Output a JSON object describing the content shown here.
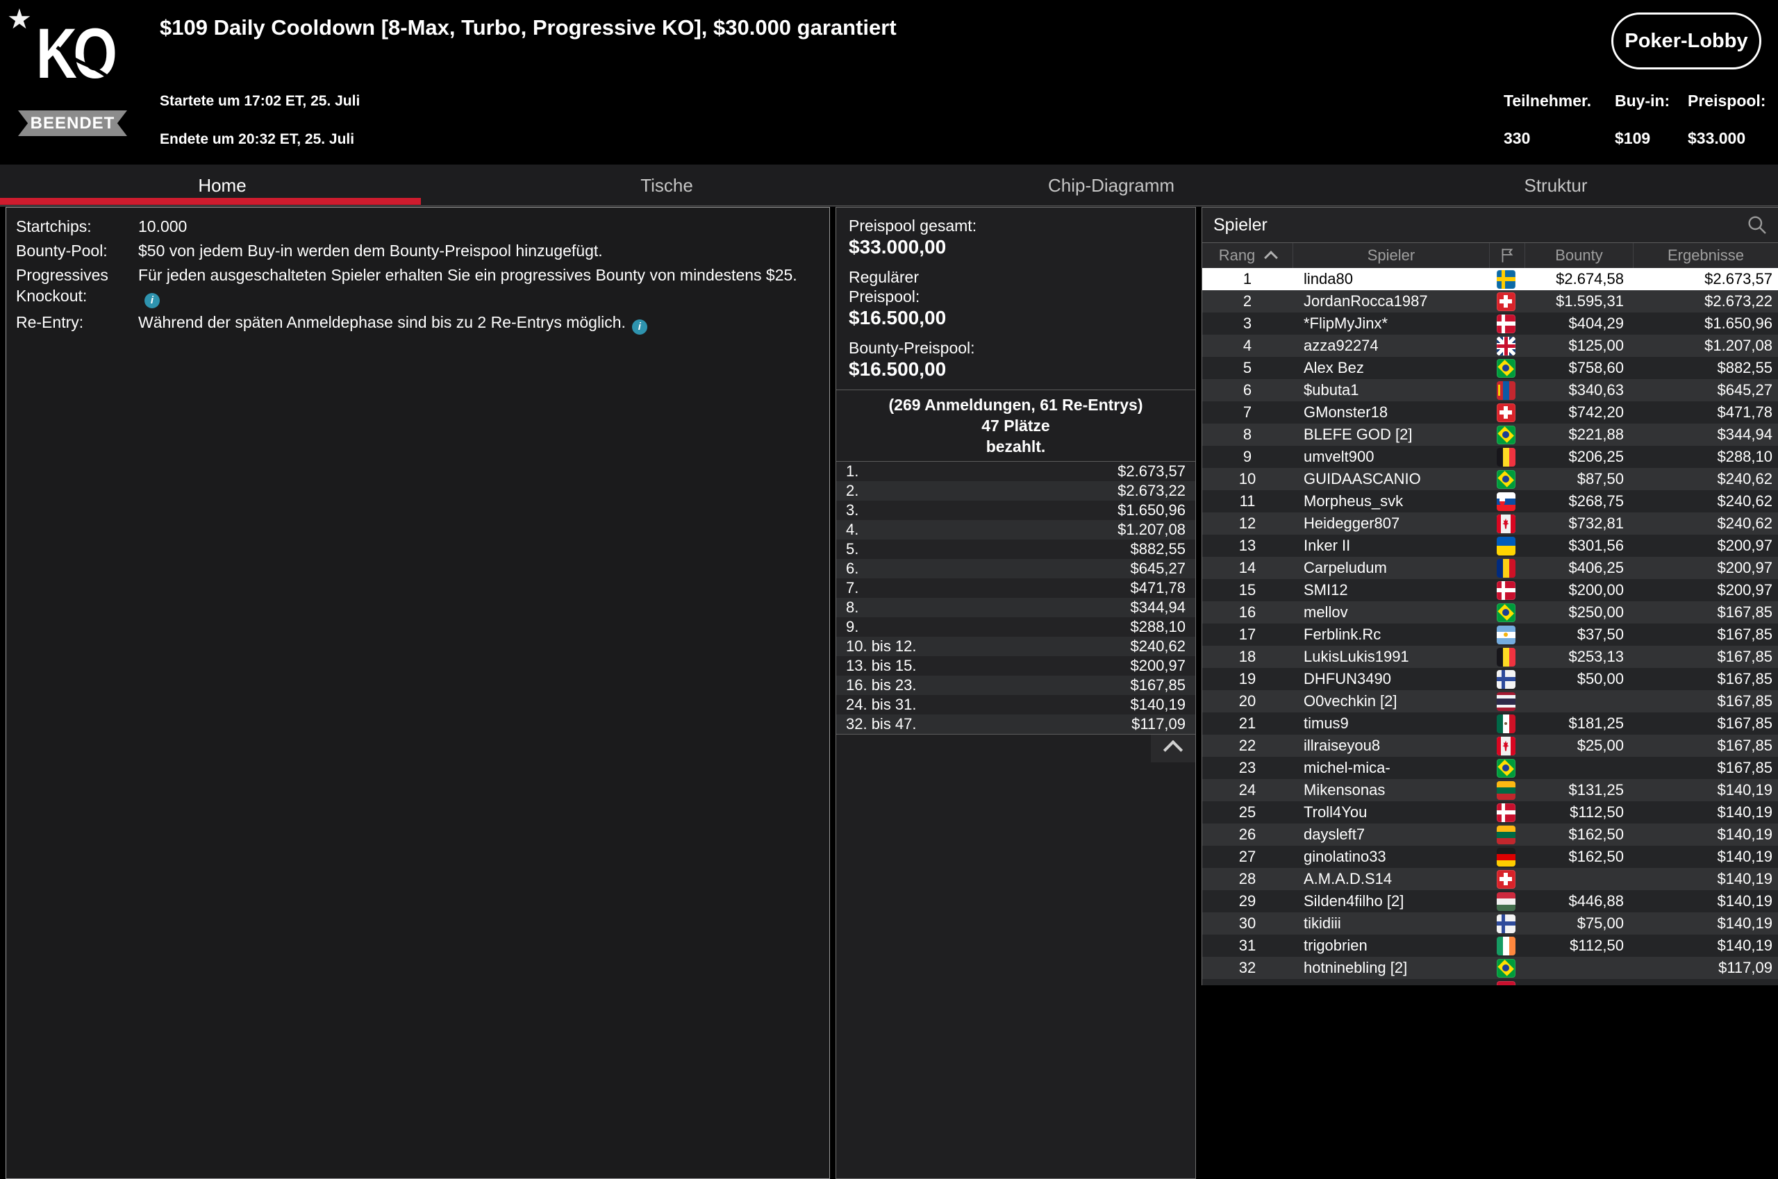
{
  "colors": {
    "accent_red": "#cf1c2e",
    "info_blue": "#2e93ae",
    "selected_row_bg": "#ffffff",
    "badge_gray": "#8c8c8c"
  },
  "header": {
    "logo": "KO",
    "star_icon": "star-icon",
    "status_badge": "BEENDET",
    "title": "$109 Daily Cooldown [8-Max, Turbo, Progressive KO], $30.000 garantiert",
    "started": "Startete um 17:02 ET, 25. Juli",
    "ended": "Endete um 20:32 ET, 25. Juli",
    "lobby_button": "Poker-Lobby",
    "stats": [
      {
        "label": "Teilnehmer.",
        "value": "330"
      },
      {
        "label": "Buy-in:",
        "value": "$109"
      },
      {
        "label": "Preispool:",
        "value": "$33.000"
      }
    ]
  },
  "tabs": [
    {
      "label": "Home",
      "active": true
    },
    {
      "label": "Tische",
      "active": false
    },
    {
      "label": "Chip-Diagramm",
      "active": false
    },
    {
      "label": "Struktur",
      "active": false
    }
  ],
  "details": [
    {
      "label": "Startchips:",
      "value": "10.000",
      "info": false
    },
    {
      "label": "Bounty-Pool:",
      "value": "$50 von jedem Buy-in werden dem Bounty-Preispool hinzugefügt.",
      "info": false
    },
    {
      "label": "Progressives Knockout:",
      "value": "Für jeden ausgeschalteten Spieler erhalten Sie ein progressives Bounty von mindestens $25.",
      "info": true
    },
    {
      "label": "Re-Entry:",
      "value": "Während der späten Anmeldephase sind bis zu 2 Re-Entrys möglich.",
      "info": true
    }
  ],
  "prizepool": {
    "total_label": "Preispool gesamt:",
    "total_value": "$33.000,00",
    "regular_label": "Regulärer\nPreispool:",
    "regular_value": "$16.500,00",
    "bounty_label": "Bounty-Preispool:",
    "bounty_value": "$16.500,00",
    "registrations": "(269 Anmeldungen, 61 Re-Entrys)",
    "places_line1": "47 Plätze",
    "places_line2": "bezahlt.",
    "collapse_icon": "chevron-up-icon",
    "payouts": [
      {
        "place": "1.",
        "amount": "$2.673,57"
      },
      {
        "place": "2.",
        "amount": "$2.673,22"
      },
      {
        "place": "3.",
        "amount": "$1.650,96"
      },
      {
        "place": "4.",
        "amount": "$1.207,08"
      },
      {
        "place": "5.",
        "amount": "$882,55"
      },
      {
        "place": "6.",
        "amount": "$645,27"
      },
      {
        "place": "7.",
        "amount": "$471,78"
      },
      {
        "place": "8.",
        "amount": "$344,94"
      },
      {
        "place": "9.",
        "amount": "$288,10"
      },
      {
        "place": "10. bis 12.",
        "amount": "$240,62"
      },
      {
        "place": "13. bis 15.",
        "amount": "$200,97"
      },
      {
        "place": "16. bis 23.",
        "amount": "$167,85"
      },
      {
        "place": "24. bis 31.",
        "amount": "$140,19"
      },
      {
        "place": "32. bis 47.",
        "amount": "$117,09"
      }
    ]
  },
  "players": {
    "panel_title": "Spieler",
    "search_icon": "search-icon",
    "columns": {
      "rank": "Rang",
      "player": "Spieler",
      "flag": "flag-icon",
      "bounty": "Bounty",
      "results": "Ergebnisse"
    },
    "rows": [
      {
        "rank": "1",
        "name": "linda80",
        "flag": "sweden",
        "bounty": "$2.674,58",
        "result": "$2.673,57",
        "selected": true
      },
      {
        "rank": "2",
        "name": "JordanRocca1987",
        "flag": "switzerland",
        "bounty": "$1.595,31",
        "result": "$2.673,22"
      },
      {
        "rank": "3",
        "name": "*FlipMyJinx*",
        "flag": "denmark",
        "bounty": "$404,29",
        "result": "$1.650,96"
      },
      {
        "rank": "4",
        "name": "azza92274",
        "flag": "uk",
        "bounty": "$125,00",
        "result": "$1.207,08"
      },
      {
        "rank": "5",
        "name": "Alex Bez",
        "flag": "brazil",
        "bounty": "$758,60",
        "result": "$882,55"
      },
      {
        "rank": "6",
        "name": "$ubuta1",
        "flag": "mongolia",
        "bounty": "$340,63",
        "result": "$645,27"
      },
      {
        "rank": "7",
        "name": "GMonster18",
        "flag": "switzerland",
        "bounty": "$742,20",
        "result": "$471,78"
      },
      {
        "rank": "8",
        "name": "BLEFE GOD [2]",
        "flag": "brazil",
        "bounty": "$221,88",
        "result": "$344,94"
      },
      {
        "rank": "9",
        "name": "umvelt900",
        "flag": "belgium",
        "bounty": "$206,25",
        "result": "$288,10"
      },
      {
        "rank": "10",
        "name": "GUIDAASCANIO",
        "flag": "brazil",
        "bounty": "$87,50",
        "result": "$240,62"
      },
      {
        "rank": "11",
        "name": "Morpheus_svk",
        "flag": "slovakia",
        "bounty": "$268,75",
        "result": "$240,62"
      },
      {
        "rank": "12",
        "name": "Heidegger807",
        "flag": "canada",
        "bounty": "$732,81",
        "result": "$240,62"
      },
      {
        "rank": "13",
        "name": "Inker II",
        "flag": "ukraine",
        "bounty": "$301,56",
        "result": "$200,97"
      },
      {
        "rank": "14",
        "name": "Carpeludum",
        "flag": "romania",
        "bounty": "$406,25",
        "result": "$200,97"
      },
      {
        "rank": "15",
        "name": "SMI12",
        "flag": "denmark",
        "bounty": "$200,00",
        "result": "$200,97"
      },
      {
        "rank": "16",
        "name": "mellov",
        "flag": "brazil",
        "bounty": "$250,00",
        "result": "$167,85"
      },
      {
        "rank": "17",
        "name": "Ferblink.Rc",
        "flag": "argentina",
        "bounty": "$37,50",
        "result": "$167,85"
      },
      {
        "rank": "18",
        "name": "LukisLukis1991",
        "flag": "belgium",
        "bounty": "$253,13",
        "result": "$167,85"
      },
      {
        "rank": "19",
        "name": "DHFUN3490",
        "flag": "finland",
        "bounty": "$50,00",
        "result": "$167,85"
      },
      {
        "rank": "20",
        "name": "O0vechkin [2]",
        "flag": "thailand",
        "bounty": "",
        "result": "$167,85"
      },
      {
        "rank": "21",
        "name": "timus9",
        "flag": "mexico",
        "bounty": "$181,25",
        "result": "$167,85"
      },
      {
        "rank": "22",
        "name": "illraiseyou8",
        "flag": "canada",
        "bounty": "$25,00",
        "result": "$167,85"
      },
      {
        "rank": "23",
        "name": "michel-mica-",
        "flag": "brazil",
        "bounty": "",
        "result": "$167,85"
      },
      {
        "rank": "24",
        "name": "Mikensonas",
        "flag": "lithuania",
        "bounty": "$131,25",
        "result": "$140,19"
      },
      {
        "rank": "25",
        "name": "Troll4You",
        "flag": "denmark",
        "bounty": "$112,50",
        "result": "$140,19"
      },
      {
        "rank": "26",
        "name": "daysleft7",
        "flag": "lithuania",
        "bounty": "$162,50",
        "result": "$140,19"
      },
      {
        "rank": "27",
        "name": "ginolatino33",
        "flag": "germany",
        "bounty": "$162,50",
        "result": "$140,19"
      },
      {
        "rank": "28",
        "name": "A.M.A.D.S14",
        "flag": "switzerland",
        "bounty": "",
        "result": "$140,19"
      },
      {
        "rank": "29",
        "name": "Silden4filho [2]",
        "flag": "hungary",
        "bounty": "$446,88",
        "result": "$140,19"
      },
      {
        "rank": "30",
        "name": "tikidiii",
        "flag": "finland",
        "bounty": "$75,00",
        "result": "$140,19"
      },
      {
        "rank": "31",
        "name": "trigobrien",
        "flag": "ireland",
        "bounty": "$112,50",
        "result": "$140,19"
      },
      {
        "rank": "32",
        "name": "hotninebling [2]",
        "flag": "brazil",
        "bounty": "",
        "result": "$117,09"
      },
      {
        "rank": "",
        "name": "",
        "flag": "partial-red",
        "bounty": "",
        "result": ""
      }
    ]
  }
}
